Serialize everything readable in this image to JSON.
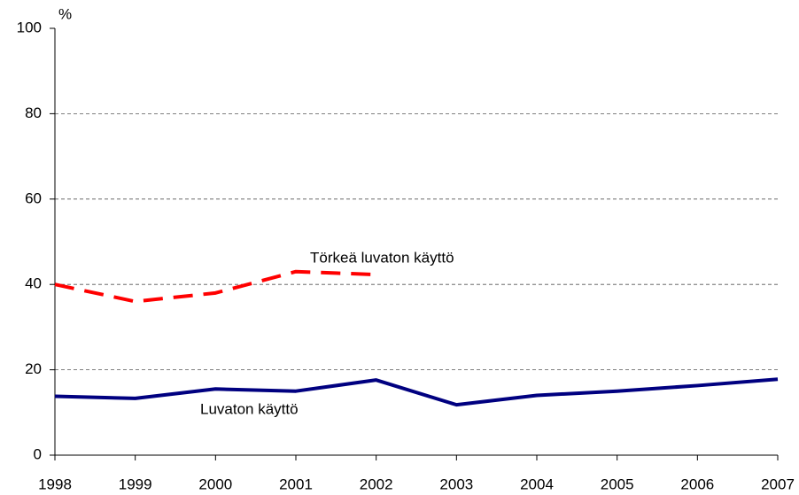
{
  "chart_data": {
    "type": "line",
    "y_label": "%",
    "categories": [
      "1998",
      "1999",
      "2000",
      "2001",
      "2002",
      "2003",
      "2004",
      "2005",
      "2006",
      "2007"
    ],
    "series": [
      {
        "name": "Luvaton käyttö",
        "color": "#000080",
        "dashed": false,
        "values": [
          13.8,
          13.3,
          15.5,
          15.0,
          17.6,
          11.8,
          14.0,
          15.0,
          16.3,
          17.8
        ]
      },
      {
        "name": "Törkeä luvaton käyttö",
        "color": "#ff0000",
        "dashed": true,
        "values": [
          40.0,
          36.0,
          38.0,
          43.0,
          42.3,
          null,
          null,
          null,
          null,
          null
        ]
      }
    ],
    "ylim": [
      0,
      100
    ],
    "yticks": [
      0,
      20,
      40,
      60,
      80,
      100
    ],
    "grid": true
  }
}
